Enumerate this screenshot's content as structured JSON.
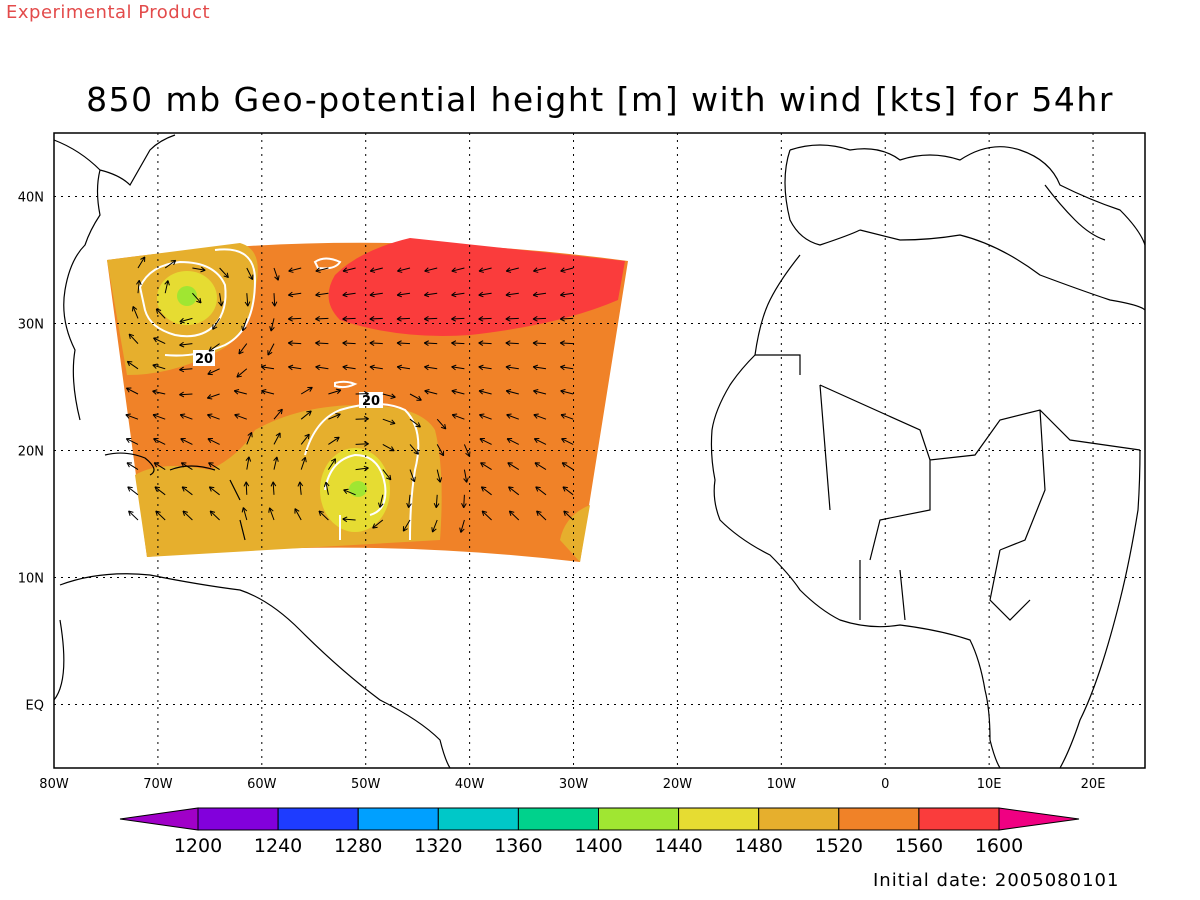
{
  "header": {
    "banner": "Experimental Product",
    "title": "850 mb Geo-potential height [m] with wind [kts] for 54hr",
    "initial_date": "Initial date: 2005080101"
  },
  "map": {
    "lon_range": [
      -80,
      25
    ],
    "lat_range": [
      -5,
      45
    ],
    "lon_labels": [
      "80W",
      "70W",
      "60W",
      "50W",
      "40W",
      "30W",
      "20W",
      "10W",
      "0",
      "10E",
      "20E"
    ],
    "lat_labels": [
      "EQ",
      "10N",
      "20N",
      "30N",
      "40N"
    ],
    "contour_labels": [
      "20",
      "20"
    ]
  },
  "colorbar": {
    "labels": [
      "1200",
      "1240",
      "1280",
      "1320",
      "1360",
      "1400",
      "1440",
      "1480",
      "1520",
      "1560",
      "1600"
    ],
    "colors": [
      "#a000c8",
      "#8200dc",
      "#1e3cff",
      "#00a0ff",
      "#00c8c8",
      "#00d28c",
      "#a0e632",
      "#e6dc32",
      "#e6af2d",
      "#f08228",
      "#fa3c3c",
      "#f00082"
    ]
  }
}
